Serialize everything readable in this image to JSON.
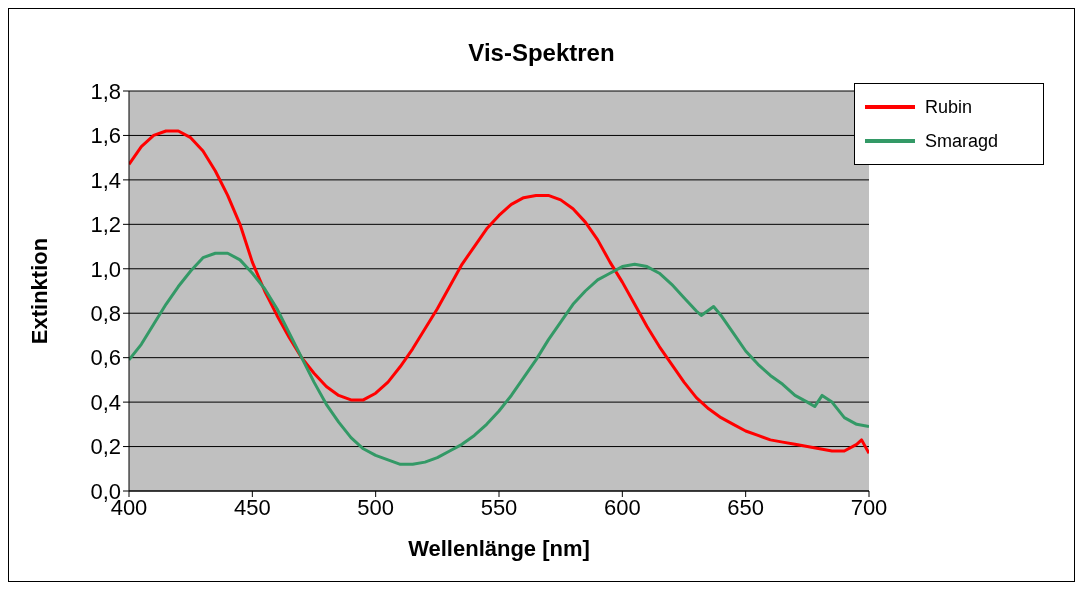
{
  "chart_data": {
    "type": "line",
    "title": "Vis-Spektren",
    "xlabel": "Wellenlänge [nm]",
    "ylabel": "Extinktion",
    "xlim": [
      400,
      700
    ],
    "xticks": [
      400,
      450,
      500,
      550,
      600,
      650,
      700
    ],
    "ylim": [
      0,
      1.8
    ],
    "yticks": [
      {
        "value": 0,
        "label": "0,0"
      },
      {
        "value": 0.2,
        "label": "0,2"
      },
      {
        "value": 0.4,
        "label": "0,4"
      },
      {
        "value": 0.6,
        "label": "0,6"
      },
      {
        "value": 0.8,
        "label": "0,8"
      },
      {
        "value": 1,
        "label": "1,0"
      },
      {
        "value": 1.2,
        "label": "1,2"
      },
      {
        "value": 1.4,
        "label": "1,4"
      },
      {
        "value": 1.6,
        "label": "1,6"
      },
      {
        "value": 1.8,
        "label": "1,8"
      }
    ],
    "grid": "y",
    "legend": "top right",
    "marker": "none",
    "line_style": "solid",
    "series": [
      {
        "name": "Rubin",
        "color": "#ff0000",
        "x": [
          400,
          405,
          410,
          415,
          420,
          425,
          430,
          435,
          440,
          445,
          450,
          455,
          460,
          465,
          470,
          475,
          480,
          485,
          490,
          495,
          500,
          505,
          510,
          515,
          520,
          525,
          530,
          535,
          540,
          545,
          550,
          555,
          560,
          565,
          570,
          575,
          580,
          585,
          590,
          595,
          600,
          605,
          610,
          615,
          620,
          625,
          630,
          635,
          640,
          645,
          650,
          655,
          660,
          665,
          670,
          675,
          680,
          685,
          690,
          695,
          697,
          700
        ],
        "values": [
          1.47,
          1.55,
          1.6,
          1.62,
          1.62,
          1.59,
          1.53,
          1.44,
          1.33,
          1.2,
          1.03,
          0.9,
          0.79,
          0.69,
          0.6,
          0.53,
          0.47,
          0.43,
          0.41,
          0.41,
          0.44,
          0.49,
          0.56,
          0.64,
          0.73,
          0.82,
          0.92,
          1.02,
          1.1,
          1.18,
          1.24,
          1.29,
          1.32,
          1.33,
          1.33,
          1.31,
          1.27,
          1.21,
          1.13,
          1.03,
          0.94,
          0.84,
          0.74,
          0.65,
          0.57,
          0.49,
          0.42,
          0.37,
          0.33,
          0.3,
          0.27,
          0.25,
          0.23,
          0.22,
          0.21,
          0.2,
          0.19,
          0.18,
          0.18,
          0.21,
          0.23,
          0.17
        ]
      },
      {
        "name": "Smaragd",
        "color": "#339966",
        "x": [
          400,
          405,
          410,
          415,
          420,
          425,
          430,
          435,
          440,
          445,
          450,
          455,
          460,
          465,
          470,
          475,
          480,
          485,
          490,
          495,
          500,
          505,
          510,
          515,
          520,
          525,
          530,
          535,
          540,
          545,
          550,
          555,
          560,
          565,
          570,
          575,
          580,
          585,
          590,
          595,
          600,
          605,
          610,
          615,
          620,
          625,
          630,
          632,
          637,
          640,
          645,
          650,
          655,
          660,
          665,
          670,
          675,
          678,
          681,
          685,
          690,
          695,
          700
        ],
        "values": [
          0.59,
          0.66,
          0.75,
          0.84,
          0.92,
          0.99,
          1.05,
          1.07,
          1.07,
          1.04,
          0.98,
          0.91,
          0.82,
          0.71,
          0.6,
          0.49,
          0.39,
          0.31,
          0.24,
          0.19,
          0.16,
          0.14,
          0.12,
          0.12,
          0.13,
          0.15,
          0.18,
          0.21,
          0.25,
          0.3,
          0.36,
          0.43,
          0.51,
          0.59,
          0.68,
          0.76,
          0.84,
          0.9,
          0.95,
          0.98,
          1.01,
          1.02,
          1.01,
          0.98,
          0.93,
          0.87,
          0.81,
          0.79,
          0.83,
          0.79,
          0.71,
          0.63,
          0.57,
          0.52,
          0.48,
          0.43,
          0.4,
          0.38,
          0.43,
          0.4,
          0.33,
          0.3,
          0.29
        ]
      }
    ]
  }
}
